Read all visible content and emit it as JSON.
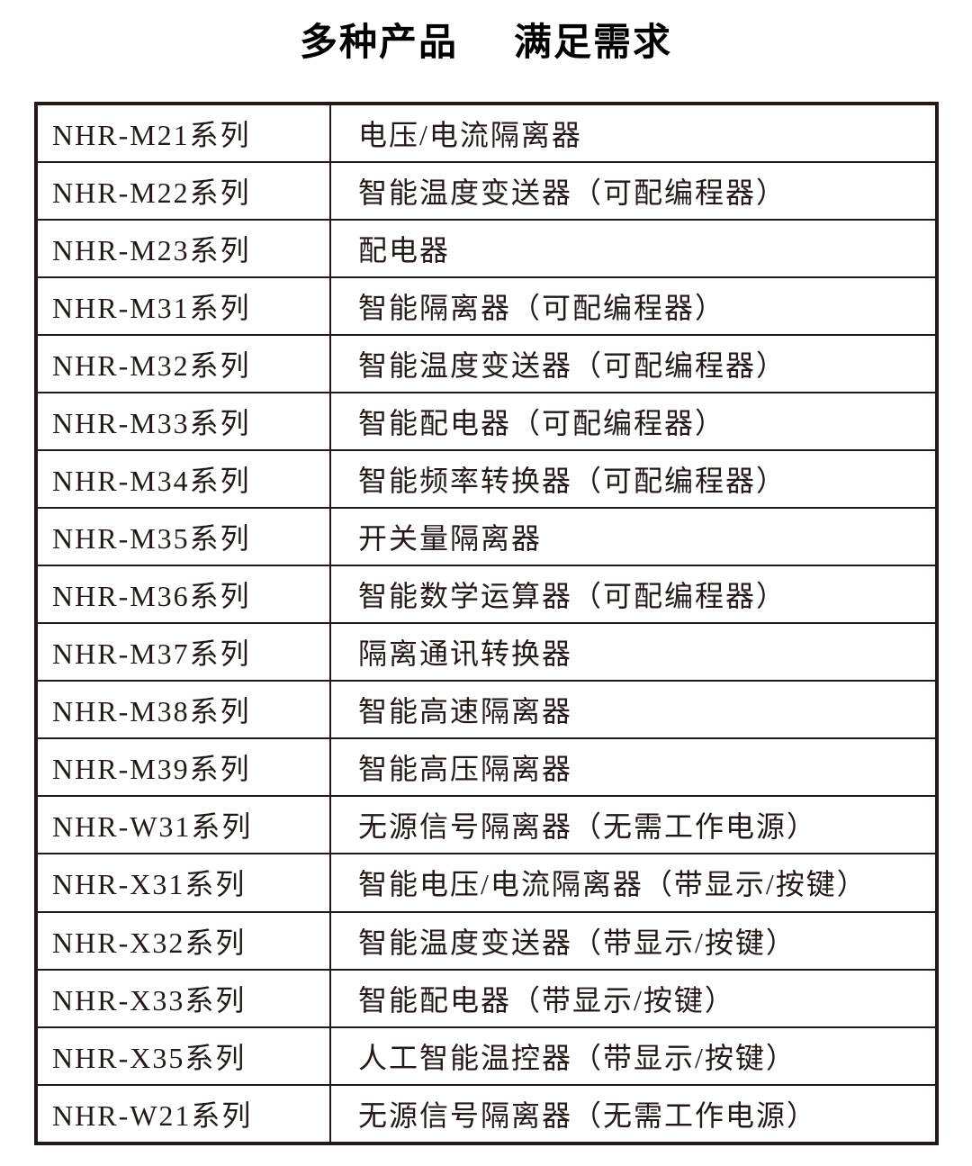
{
  "title": {
    "part1": "多种产品",
    "part2": "满足需求"
  },
  "colors": {
    "ink": "#231a17",
    "border": "#231a17",
    "background": "#ffffff"
  },
  "table": {
    "columns": [
      "series",
      "description"
    ],
    "rows": [
      {
        "series": "NHR-M21系列",
        "description": "电压/电流隔离器"
      },
      {
        "series": "NHR-M22系列",
        "description": "智能温度变送器（可配编程器）"
      },
      {
        "series": "NHR-M23系列",
        "description": "配电器"
      },
      {
        "series": "NHR-M31系列",
        "description": "智能隔离器（可配编程器）"
      },
      {
        "series": "NHR-M32系列",
        "description": "智能温度变送器（可配编程器）"
      },
      {
        "series": "NHR-M33系列",
        "description": "智能配电器（可配编程器）"
      },
      {
        "series": "NHR-M34系列",
        "description": "智能频率转换器（可配编程器）"
      },
      {
        "series": "NHR-M35系列",
        "description": "开关量隔离器"
      },
      {
        "series": "NHR-M36系列",
        "description": "智能数学运算器（可配编程器）"
      },
      {
        "series": "NHR-M37系列",
        "description": "隔离通讯转换器"
      },
      {
        "series": "NHR-M38系列",
        "description": "智能高速隔离器"
      },
      {
        "series": "NHR-M39系列",
        "description": "智能高压隔离器"
      },
      {
        "series": "NHR-W31系列",
        "description": "无源信号隔离器（无需工作电源）"
      },
      {
        "series": "NHR-X31系列",
        "description": "智能电压/电流隔离器（带显示/按键）"
      },
      {
        "series": "NHR-X32系列",
        "description": "智能温度变送器（带显示/按键）"
      },
      {
        "series": "NHR-X33系列",
        "description": "智能配电器（带显示/按键）"
      },
      {
        "series": "NHR-X35系列",
        "description": "人工智能温控器（带显示/按键）"
      },
      {
        "series": "NHR-W21系列",
        "description": "无源信号隔离器（无需工作电源）"
      }
    ]
  }
}
